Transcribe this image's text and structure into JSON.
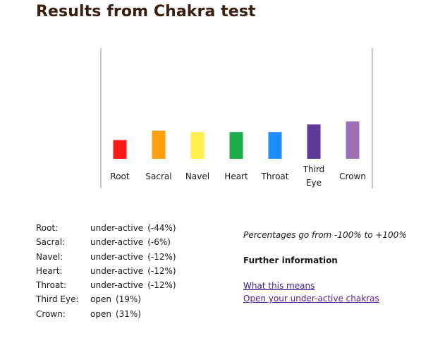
{
  "page": {
    "title": "Results from Chakra test"
  },
  "chart_data": {
    "type": "bar",
    "categories": [
      "Root",
      "Sacral",
      "Navel",
      "Heart",
      "Throat",
      "Third Eye",
      "Crown"
    ],
    "category_lines": [
      [
        "Root"
      ],
      [
        "Sacral"
      ],
      [
        "Navel"
      ],
      [
        "Heart"
      ],
      [
        "Throat"
      ],
      [
        "Third",
        "Eye"
      ],
      [
        "Crown"
      ]
    ],
    "values": [
      -44,
      -6,
      -12,
      -12,
      -12,
      19,
      31
    ],
    "ylim": [
      -100,
      100
    ],
    "colors": [
      "#ff1a1a",
      "#ff9e0f",
      "#ffef4a",
      "#1cac49",
      "#1e8cff",
      "#5e3a98",
      "#9c6fb6"
    ],
    "grid": false,
    "title": "",
    "xlabel": "",
    "ylabel": ""
  },
  "results": {
    "rows": [
      {
        "name": "Root:",
        "status": "under-active",
        "pct": "(-44%)"
      },
      {
        "name": "Sacral:",
        "status": "under-active",
        "pct": "(-6%)"
      },
      {
        "name": "Navel:",
        "status": "under-active",
        "pct": "(-12%)"
      },
      {
        "name": "Heart:",
        "status": "under-active",
        "pct": "(-12%)"
      },
      {
        "name": "Throat:",
        "status": "under-active",
        "pct": "(-12%)"
      },
      {
        "name": "Third Eye:",
        "status": "open",
        "pct": "(19%)"
      },
      {
        "name": "Crown:",
        "status": "open",
        "pct": "(31%)"
      }
    ]
  },
  "side": {
    "range_note": "Percentages go from -100% to +100%",
    "further_heading": "Further information",
    "links": [
      "What this means",
      "Open your under-active chakras"
    ]
  }
}
